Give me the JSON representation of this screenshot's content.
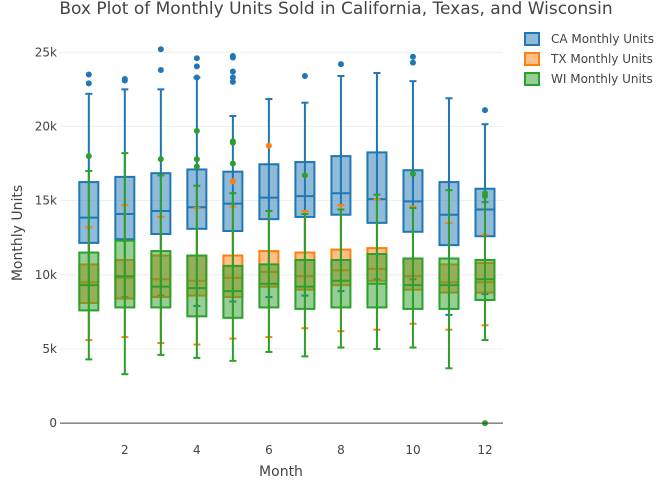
{
  "chart_data": {
    "type": "box",
    "title": "Box Plot of Monthly Units Sold in California, Texas, and Wisconsin",
    "xlabel": "Month",
    "ylabel": "Monthly Units",
    "x_ticks": [
      2,
      4,
      6,
      8,
      10,
      12
    ],
    "y_ticks": [
      0,
      5000,
      10000,
      15000,
      20000,
      25000
    ],
    "y_tick_labels": [
      "0",
      "5k",
      "10k",
      "15k",
      "20k",
      "25k"
    ],
    "xlim": [
      0.2,
      12.5
    ],
    "ylim": [
      -1000,
      26500
    ],
    "grid": true,
    "legend_position": "top-right",
    "boxmode": "overlay",
    "series": [
      {
        "name": "CA Monthly Units",
        "color": "#1f77b4",
        "fill": "rgba(31,119,180,0.5)",
        "boxes": [
          {
            "month": 1,
            "min": 8100,
            "q1": 12150,
            "median": 13850,
            "q3": 16250,
            "max": 22200,
            "outliers": [
              22900,
              23500
            ]
          },
          {
            "month": 2,
            "min": 8500,
            "q1": 12400,
            "median": 14100,
            "q3": 16600,
            "max": 22500,
            "outliers": [
              23100,
              23200
            ]
          },
          {
            "month": 3,
            "min": 8600,
            "q1": 12750,
            "median": 14300,
            "q3": 16850,
            "max": 22500,
            "outliers": [
              23800,
              25200
            ]
          },
          {
            "month": 4,
            "min": 7900,
            "q1": 13100,
            "median": 14550,
            "q3": 17100,
            "max": 23300,
            "outliers": [
              23300,
              24050,
              24600
            ]
          },
          {
            "month": 5,
            "min": 8200,
            "q1": 12950,
            "median": 14800,
            "q3": 16950,
            "max": 20700,
            "outliers": [
              23000,
              23300,
              23700,
              24650,
              24750
            ]
          },
          {
            "month": 6,
            "min": 8500,
            "q1": 13750,
            "median": 15200,
            "q3": 17450,
            "max": 21850,
            "outliers": []
          },
          {
            "month": 7,
            "min": 8600,
            "q1": 13900,
            "median": 15300,
            "q3": 17600,
            "max": 21600,
            "outliers": [
              23400
            ]
          },
          {
            "month": 8,
            "min": 8900,
            "q1": 14050,
            "median": 15500,
            "q3": 18000,
            "max": 23400,
            "outliers": [
              24200
            ]
          },
          {
            "month": 9,
            "min": 9700,
            "q1": 13500,
            "median": 15100,
            "q3": 18250,
            "max": 23600,
            "outliers": []
          },
          {
            "month": 10,
            "min": 9700,
            "q1": 12900,
            "median": 14950,
            "q3": 17050,
            "max": 23050,
            "outliers": [
              24300,
              24700
            ]
          },
          {
            "month": 11,
            "min": 7300,
            "q1": 12000,
            "median": 14050,
            "q3": 16250,
            "max": 21900,
            "outliers": []
          },
          {
            "month": 12,
            "min": 8700,
            "q1": 12600,
            "median": 14400,
            "q3": 15800,
            "max": 20150,
            "outliers": [
              21100
            ]
          }
        ]
      },
      {
        "name": "TX Monthly Units",
        "color": "#ff7f0e",
        "fill": "rgba(255,127,14,0.5)",
        "boxes": [
          {
            "month": 1,
            "min": 5600,
            "q1": 8100,
            "median": 9500,
            "q3": 10700,
            "max": 13200,
            "outliers": []
          },
          {
            "month": 2,
            "min": 5800,
            "q1": 8400,
            "median": 9800,
            "q3": 11000,
            "max": 14700,
            "outliers": []
          },
          {
            "month": 3,
            "min": 5400,
            "q1": 8500,
            "median": 9700,
            "q3": 11300,
            "max": 13900,
            "outliers": []
          },
          {
            "month": 4,
            "min": 5300,
            "q1": 8600,
            "median": 9600,
            "q3": 11300,
            "max": 14500,
            "outliers": []
          },
          {
            "month": 5,
            "min": 5700,
            "q1": 8500,
            "median": 9800,
            "q3": 11300,
            "max": 14600,
            "outliers": [
              16300
            ]
          },
          {
            "month": 6,
            "min": 5800,
            "q1": 9200,
            "median": 10200,
            "q3": 11600,
            "max": 14300,
            "outliers": [
              18700
            ]
          },
          {
            "month": 7,
            "min": 6400,
            "q1": 9000,
            "median": 9900,
            "q3": 11500,
            "max": 14300,
            "outliers": []
          },
          {
            "month": 8,
            "min": 6200,
            "q1": 9300,
            "median": 10300,
            "q3": 11700,
            "max": 14700,
            "outliers": []
          },
          {
            "month": 9,
            "min": 6300,
            "q1": 9600,
            "median": 10400,
            "q3": 11800,
            "max": 15100,
            "outliers": []
          },
          {
            "month": 10,
            "min": 6700,
            "q1": 9000,
            "median": 9900,
            "q3": 11100,
            "max": 14600,
            "outliers": []
          },
          {
            "month": 11,
            "min": 6300,
            "q1": 8800,
            "median": 9500,
            "q3": 10700,
            "max": 13500,
            "outliers": []
          },
          {
            "month": 12,
            "min": 6600,
            "q1": 8800,
            "median": 9500,
            "q3": 10800,
            "max": 12700,
            "outliers": []
          }
        ]
      },
      {
        "name": "WI Monthly Units",
        "color": "#2ca02c",
        "fill": "rgba(44,160,44,0.5)",
        "boxes": [
          {
            "month": 1,
            "min": 4300,
            "q1": 7600,
            "median": 9300,
            "q3": 11500,
            "max": 17000,
            "outliers": [
              18000
            ]
          },
          {
            "month": 2,
            "min": 3300,
            "q1": 7800,
            "median": 9900,
            "q3": 12300,
            "max": 18200,
            "outliers": []
          },
          {
            "month": 3,
            "min": 4600,
            "q1": 7800,
            "median": 9200,
            "q3": 11600,
            "max": 16700,
            "outliers": [
              17800
            ]
          },
          {
            "month": 4,
            "min": 4400,
            "q1": 7200,
            "median": 9100,
            "q3": 11300,
            "max": 16000,
            "outliers": [
              17300,
              17800,
              19700
            ]
          },
          {
            "month": 5,
            "min": 4200,
            "q1": 7100,
            "median": 8900,
            "q3": 10600,
            "max": 15500,
            "outliers": [
              17500,
              18900,
              19000
            ]
          },
          {
            "month": 6,
            "min": 4800,
            "q1": 7800,
            "median": 9400,
            "q3": 10700,
            "max": 14300,
            "outliers": []
          },
          {
            "month": 7,
            "min": 4500,
            "q1": 7700,
            "median": 9200,
            "q3": 11000,
            "max": 14100,
            "outliers": [
              16700
            ]
          },
          {
            "month": 8,
            "min": 5100,
            "q1": 7800,
            "median": 9600,
            "q3": 11000,
            "max": 14400,
            "outliers": []
          },
          {
            "month": 9,
            "min": 5000,
            "q1": 7800,
            "median": 9400,
            "q3": 11400,
            "max": 15400,
            "outliers": []
          },
          {
            "month": 10,
            "min": 5100,
            "q1": 7700,
            "median": 9300,
            "q3": 11100,
            "max": 14500,
            "outliers": [
              16800
            ]
          },
          {
            "month": 11,
            "min": 3700,
            "q1": 7700,
            "median": 9300,
            "q3": 11100,
            "max": 15700,
            "outliers": []
          },
          {
            "month": 12,
            "min": 5600,
            "q1": 8300,
            "median": 9700,
            "q3": 11000,
            "max": 14900,
            "outliers": [
              0,
              15300,
              15500
            ]
          }
        ]
      }
    ]
  }
}
